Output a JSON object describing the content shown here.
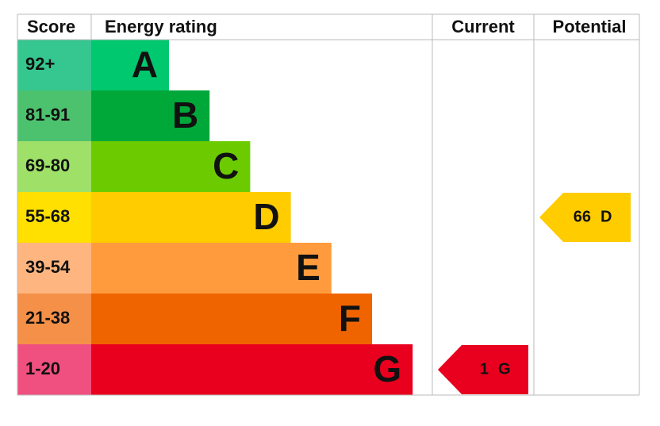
{
  "header": {
    "score": "Score",
    "rating": "Energy rating",
    "current": "Current",
    "potential": "Potential"
  },
  "bands": [
    {
      "score": "92+",
      "letter": "A",
      "color": "#00c86e",
      "score_color": "#36c690"
    },
    {
      "score": "81-91",
      "letter": "B",
      "color": "#00a83a",
      "score_color": "#4dc26e"
    },
    {
      "score": "69-80",
      "letter": "C",
      "color": "#6ccb00",
      "score_color": "#9ee068"
    },
    {
      "score": "55-68",
      "letter": "D",
      "color": "#ffcc00",
      "score_color": "#ffe000"
    },
    {
      "score": "39-54",
      "letter": "E",
      "color": "#ff9b3d",
      "score_color": "#ffb580"
    },
    {
      "score": "21-38",
      "letter": "F",
      "color": "#f06400",
      "score_color": "#f49048"
    },
    {
      "score": "1-20",
      "letter": "G",
      "color": "#e8001e",
      "score_color": "#f05080"
    }
  ],
  "current": {
    "value": 1,
    "letter": "G"
  },
  "potential": {
    "value": 66,
    "letter": "D"
  }
}
